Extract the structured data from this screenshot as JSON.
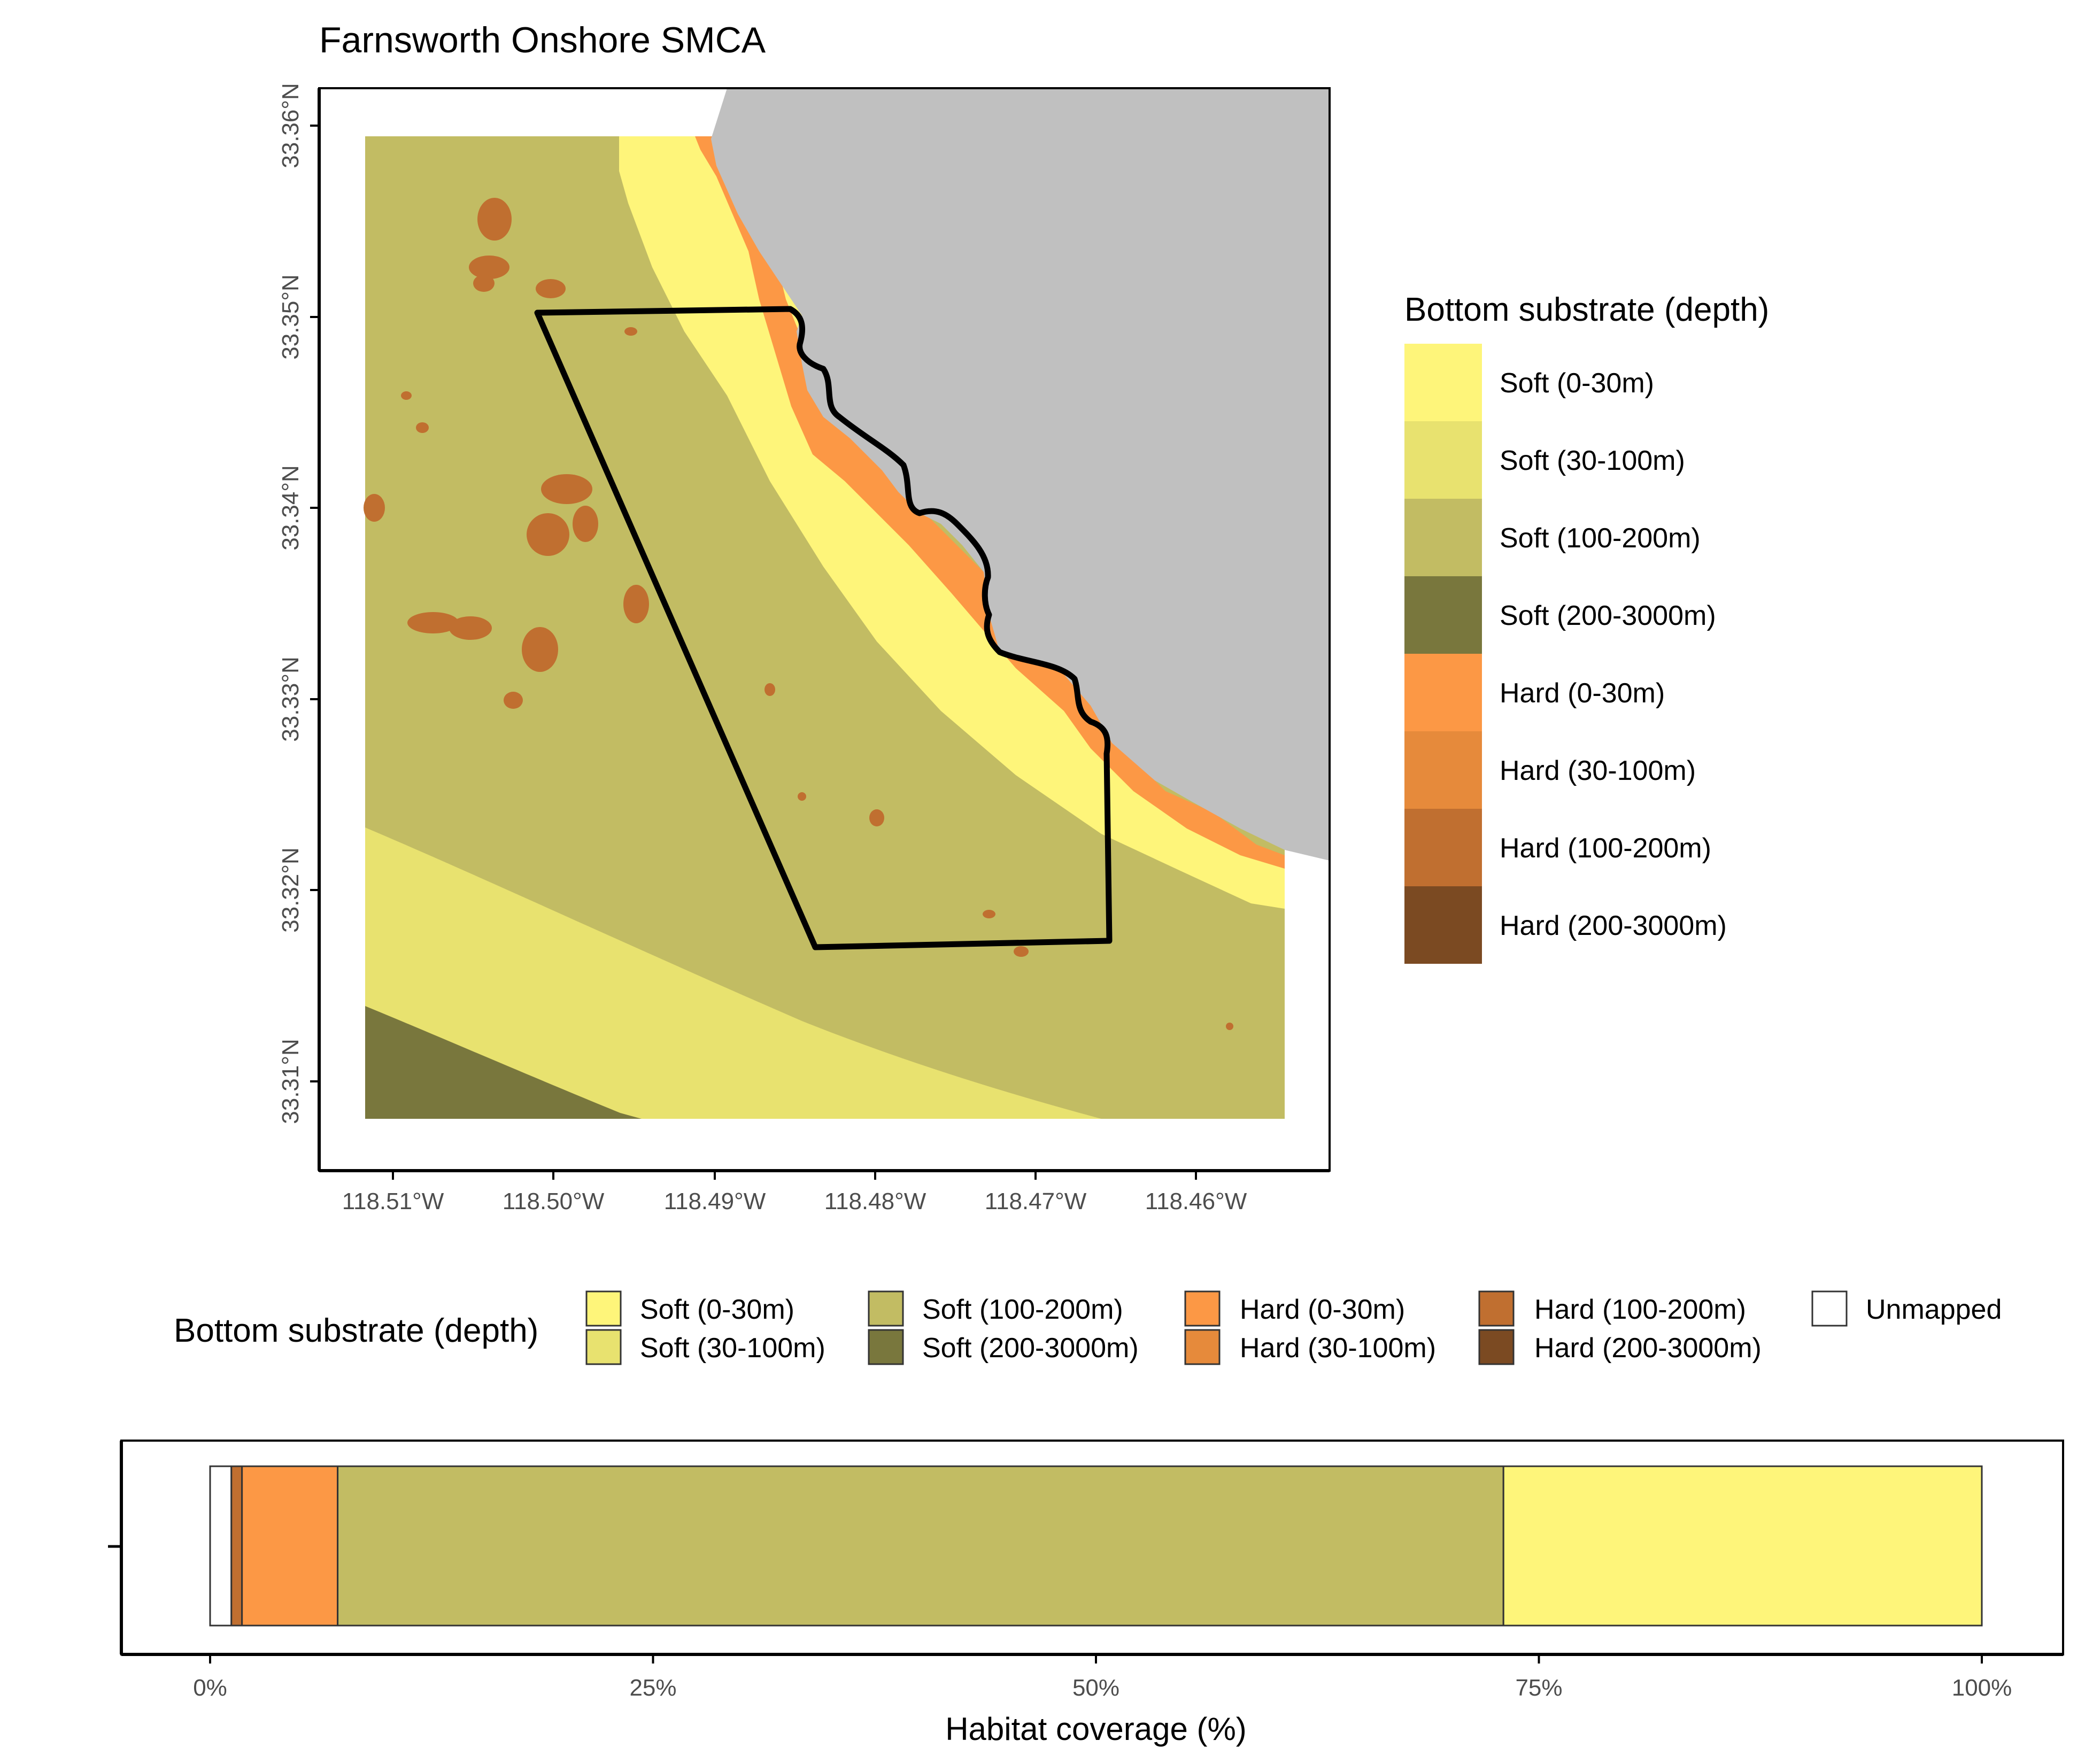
{
  "map_title": "Farnsworth Onshore SMCA",
  "map": {
    "lat_ticks": [
      "33.36°N",
      "33.35°N",
      "33.34°N",
      "33.33°N",
      "33.32°N",
      "33.31°N"
    ],
    "lon_ticks": [
      "118.51°W",
      "118.50°W",
      "118.49°W",
      "118.48°W",
      "118.47°W",
      "118.46°W"
    ]
  },
  "legend": {
    "title": "Bottom substrate (depth)",
    "items": [
      {
        "label": "Soft (0-30m)",
        "color": "#FEF57A"
      },
      {
        "label": "Soft (30-100m)",
        "color": "#E8E26F"
      },
      {
        "label": "Soft (100-200m)",
        "color": "#C2BC63"
      },
      {
        "label": "Soft (200-3000m)",
        "color": "#79773D"
      },
      {
        "label": "Hard (0-30m)",
        "color": "#FC9845"
      },
      {
        "label": "Hard (30-100m)",
        "color": "#E68A3B"
      },
      {
        "label": "Hard (100-200m)",
        "color": "#C06F30"
      },
      {
        "label": "Hard (200-3000m)",
        "color": "#7B4A22"
      }
    ],
    "unmapped": {
      "label": "Unmapped",
      "color": "#FFFFFF"
    }
  },
  "chart_data": {
    "type": "bar",
    "orientation": "horizontal-stacked",
    "xlabel": "Habitat coverage (%)",
    "ylabel": "",
    "xlim": [
      0,
      100
    ],
    "x_ticks": [
      "0%",
      "25%",
      "50%",
      "75%",
      "100%"
    ],
    "series": [
      {
        "name": "Unmapped",
        "value": 1.2,
        "color": "#FFFFFF"
      },
      {
        "name": "Hard (100-200m)",
        "value": 0.6,
        "color": "#C06F30"
      },
      {
        "name": "Hard (0-30m)",
        "value": 5.4,
        "color": "#FC9845"
      },
      {
        "name": "Soft (100-200m)",
        "value": 65.8,
        "color": "#C2BC63"
      },
      {
        "name": "Soft (0-30m)",
        "value": 27.0,
        "color": "#FEF57A"
      }
    ]
  }
}
